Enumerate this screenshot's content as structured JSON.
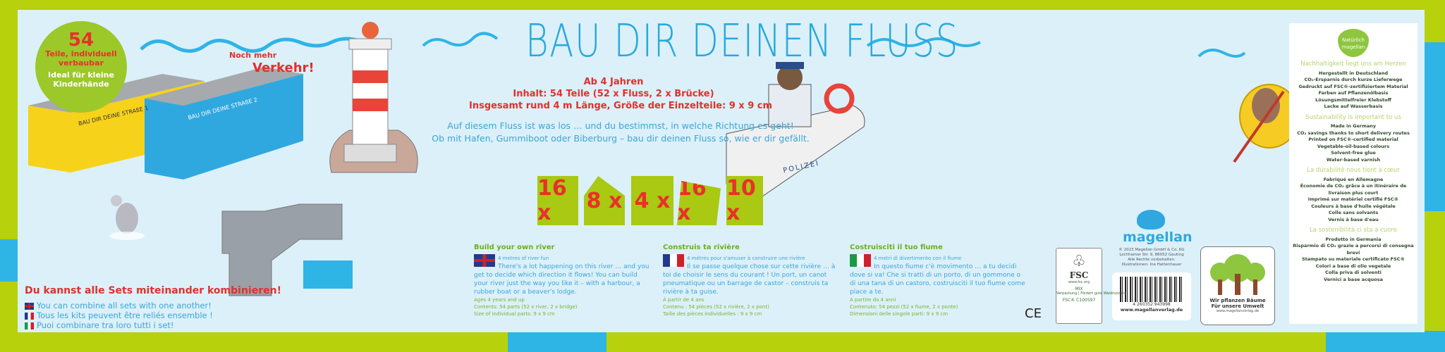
{
  "badge": {
    "count": "54",
    "line1": "Teile, individuell verbaubar",
    "line2": "Ideal für kleine Kinderhände"
  },
  "promo": {
    "small": "Noch mehr",
    "big": "Verkehr!"
  },
  "boxes": {
    "box1": "BAU DIR DEINE STRAßE 1",
    "box2": "BAU DIR DEINE STRAßE 2"
  },
  "combine": {
    "de": "Du kannst alle Sets miteinander kombinieren!",
    "en": "You can combine all sets with one another!",
    "fr": "Tous les kits peuvent être reliés ensemble !",
    "it": "Puoi combinare tra loro tutti i set!"
  },
  "title": "BAU DIR DEINEN FLUSS",
  "info": {
    "age": "Ab 4 Jahren",
    "contents": "Inhalt: 54 Teile (52 x Fluss, 2 x Brücke)",
    "size": "Insgesamt rund 4 m Länge, Größe der Einzelteile: 9 x 9 cm"
  },
  "description": [
    "Auf diesem Fluss ist was los … und du bestimmst, in welche Richtung es geht!",
    "Ob mit Hafen, Gummiboot oder Biberburg – bau dir deinen Fluss so, wie er dir gefällt."
  ],
  "pieces": [
    "16 x",
    "8 x",
    "4 x",
    "16 x",
    "10 x"
  ],
  "boat_label": "POLIZEI",
  "columns": [
    {
      "lang": "uk",
      "heading": "Build your own river",
      "sub": "4 metres of river fun",
      "text": "There's a lot happening on this river … and you get to decide which direction it flows! You can build your river just the way you like it – with a harbour, a rubber boat or a beaver's lodge.",
      "meta": [
        "Ages 4 years and up",
        "Contents: 54 parts (52 x river, 2 x bridge)",
        "Size of individual parts: 9 x 9 cm"
      ]
    },
    {
      "lang": "fr",
      "heading": "Construis ta rivière",
      "sub": "4 mètres pour s'amuser à construire une rivière",
      "text": "Il se passe quelque chose sur cette rivière … à toi de choisir le sens du courant ! Un port, un canot pneumatique ou un barrage de castor – construis ta rivière à ta guise.",
      "meta": [
        "À partir de 4 ans",
        "Contenu : 54 pièces (52 x rivière, 2 x pont)",
        "Taille des pièces individuelles : 9 x 9 cm"
      ]
    },
    {
      "lang": "it",
      "heading": "Costruisciti il tuo fiume",
      "sub": "4 metri di divertimento con il fiume",
      "text": "In questo fiume c'è movimento … a tu decidi dove si va! Che si tratti di un porto, di un gommone o di una tana di un castoro, costruisciti il tuo fiume come piace a te.",
      "meta": [
        "A partire da 4 anni",
        "Contenuto: 54 pezzi (52 x fiume, 2 x ponte)",
        "Dimensioni delle singole parti: 9 x 9 cm"
      ]
    }
  ],
  "brand": {
    "name": "magellan",
    "copyright": [
      "© 2023 Magellan GmbH & Co. KG",
      "Lochhamer Str. 9, 86052 Gauting",
      "Alle Rechte vorbehalten.",
      "Illustrationen: Ina Hattenhauer"
    ],
    "barcode": "4 260352 943998",
    "url": "www.magellanverlag.de"
  },
  "fsc": {
    "name": "FSC",
    "site": "www.fsc.org",
    "mix": "MIX",
    "text": "Verpackung | Fördert gute Waldnutzung",
    "code": "FSC® C100597"
  },
  "ce": "CE",
  "trees": {
    "line1": "Wir pflanzen Bäume",
    "line2": "Für unsere Umwelt",
    "url": "www.magellanverlag.de"
  },
  "sustainability": {
    "logo": "Natürlich magellan",
    "sections": [
      {
        "heading": "Nachhaltigkeit liegt uns am Herzen",
        "items": [
          "Hergestellt in Deutschland",
          "CO₂-Ersparnis durch kurze Lieferwege",
          "Gedruckt auf FSC®-zertifiziertem Material",
          "Farben auf Pflanzenölbasis",
          "Lösungsmittelfreier Klebstoff",
          "Lacke auf Wasserbasis"
        ]
      },
      {
        "heading": "Sustainability is important to us",
        "items": [
          "Made in Germany",
          "CO₂ savings thanks to short delivery routes",
          "Printed on FSC®-certified material",
          "Vegetable-oil-based colours",
          "Solvent-free glue",
          "Water-based varnish"
        ]
      },
      {
        "heading": "La durabilité nous tient à cœur",
        "items": [
          "Fabriqué en Allemagne",
          "Économie de CO₂ grâce à un itinéraire de livraison plus court",
          "Imprimé sur matériel certifié FSC®",
          "Couleurs à base d'huile végétale",
          "Colle sans solvants",
          "Vernis à base d'eau"
        ]
      },
      {
        "heading": "La sostenibilità ci sta a cuore",
        "items": [
          "Prodotto in Germania",
          "Risparmio di CO₂ grazie a percorsi di consegna brevi",
          "Stampato su materiale certificato FSC®",
          "Colori a base di olio vegetale",
          "Colla priva di solventi",
          "Vernici a base acquosa"
        ]
      }
    ]
  },
  "colors": {
    "green": "#b7d10c",
    "sky": "#dcf0fa",
    "title_blue": "#27a9dd",
    "red": "#e3302a",
    "water": "#2fb4e6"
  }
}
